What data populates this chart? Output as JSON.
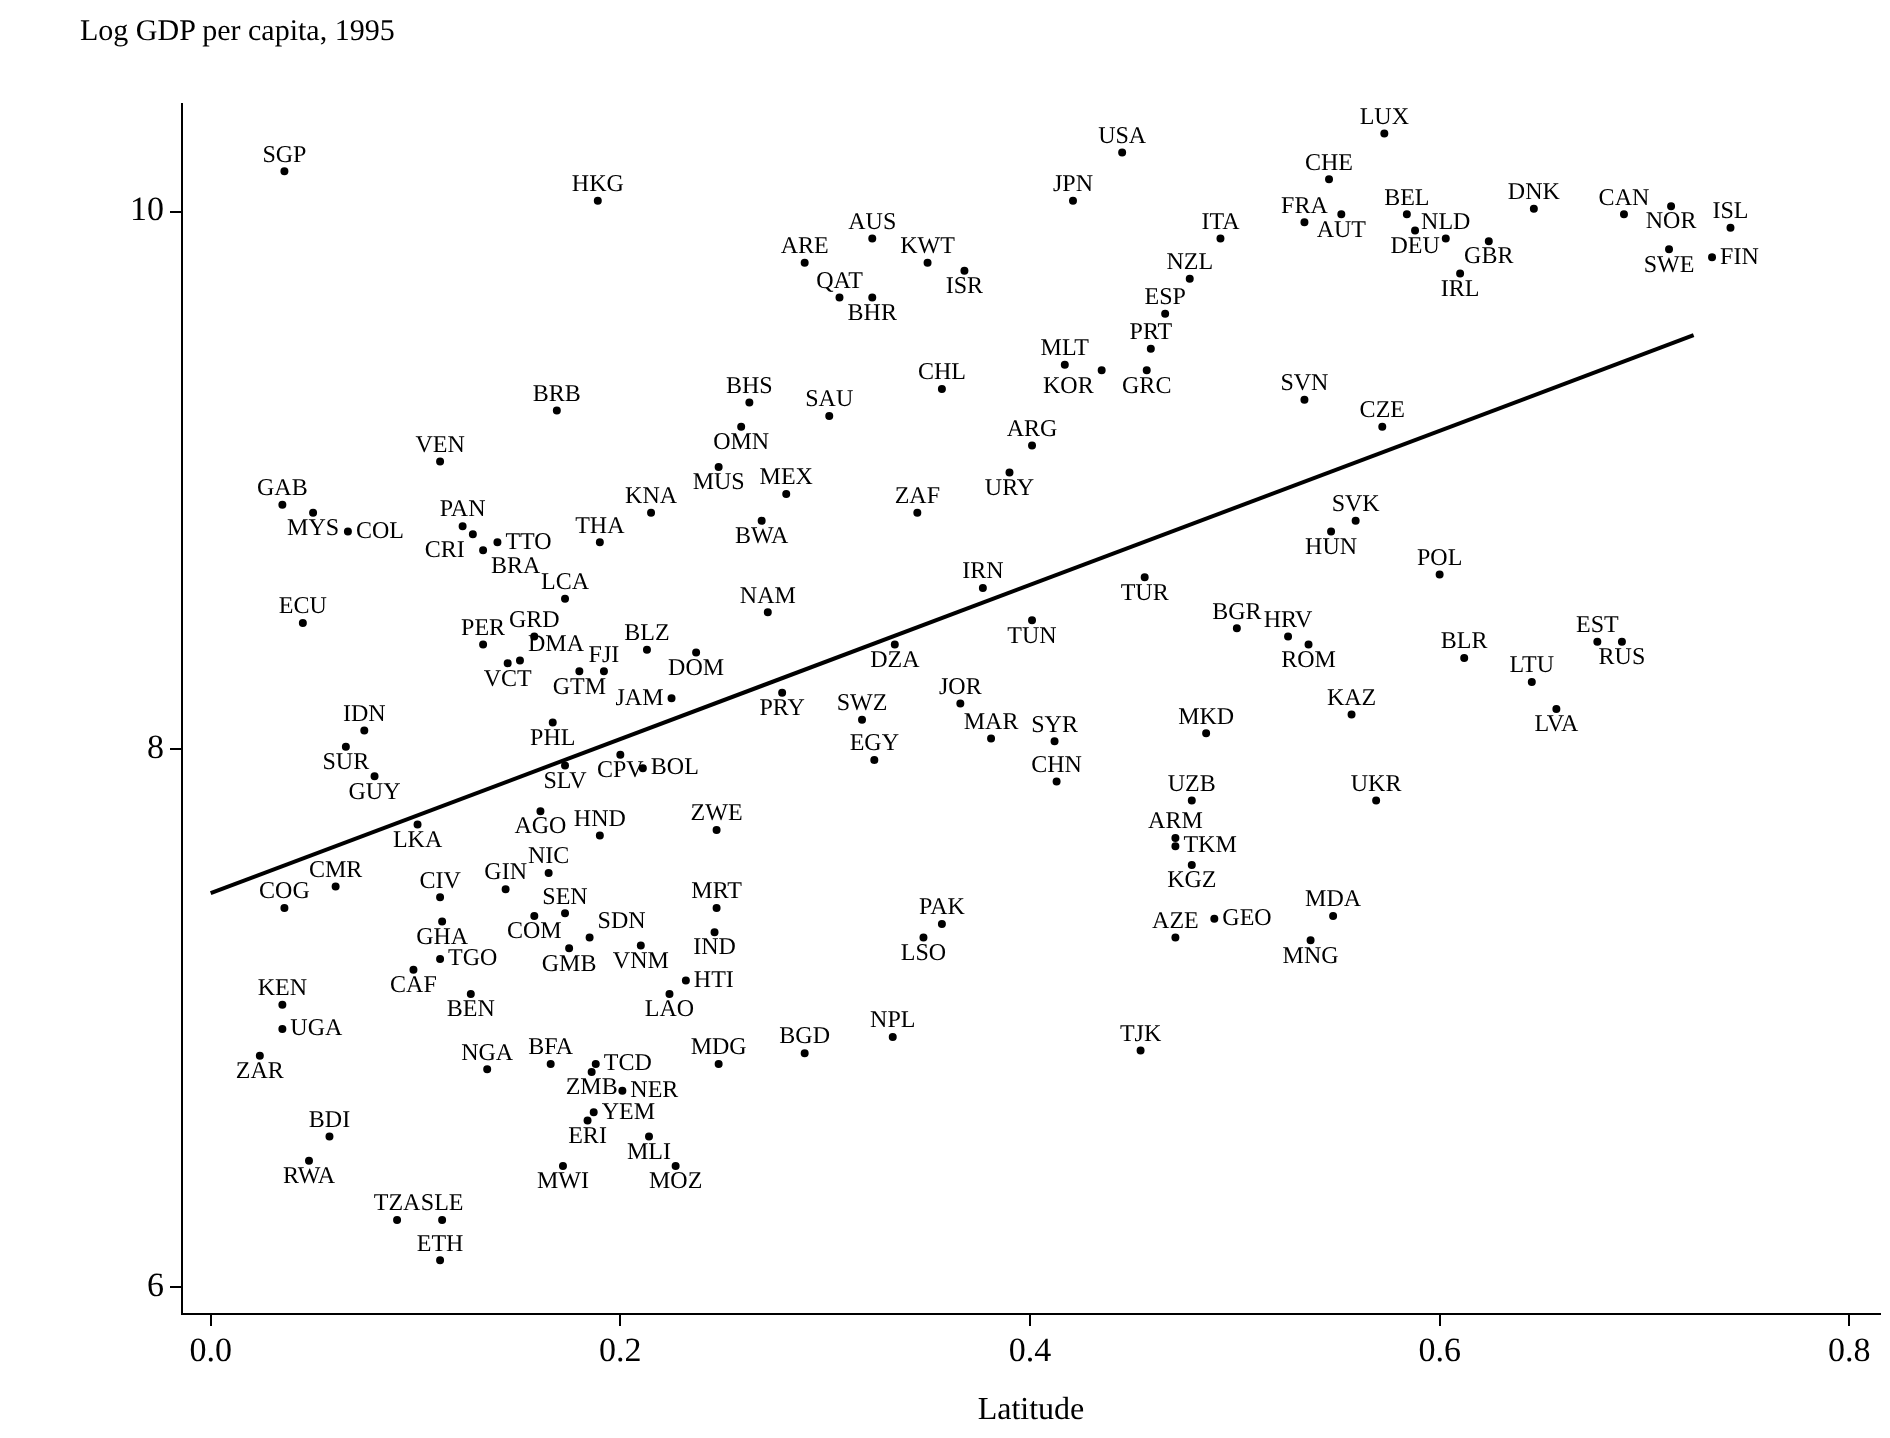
{
  "chart_data": {
    "type": "scatter",
    "ylabel": "Log GDP per capita, 1995",
    "xlabel": "Latitude",
    "xlim": [
      -0.014,
      0.815
    ],
    "ylim": [
      5.9,
      10.4
    ],
    "xticks": [
      {
        "value": 0,
        "label": "0.0"
      },
      0.2,
      0.4,
      0.6,
      0.8
    ],
    "yticks": [
      6,
      8,
      10
    ],
    "legend": false,
    "grid": false,
    "series": [
      {
        "type": "scatter",
        "color": "#000000",
        "marker": "circle",
        "x": [
          0.036,
          0.189,
          0.29,
          0.323,
          0.35,
          0.368,
          0.307,
          0.323,
          0.445,
          0.421,
          0.546,
          0.573,
          0.534,
          0.552,
          0.493,
          0.478,
          0.466,
          0.459,
          0.457,
          0.417,
          0.435,
          0.584,
          0.588,
          0.603,
          0.624,
          0.61,
          0.646,
          0.69,
          0.713,
          0.742,
          0.712,
          0.733,
          0.534,
          0.572,
          0.357,
          0.263,
          0.302,
          0.259,
          0.169,
          0.112,
          0.248,
          0.281,
          0.269,
          0.215,
          0.345,
          0.401,
          0.39,
          0.035,
          0.05,
          0.067,
          0.123,
          0.128,
          0.14,
          0.133,
          0.19,
          0.547,
          0.559,
          0.6,
          0.173,
          0.272,
          0.045,
          0.377,
          0.456,
          0.401,
          0.501,
          0.526,
          0.536,
          0.612,
          0.677,
          0.689,
          0.645,
          0.657,
          0.557,
          0.133,
          0.158,
          0.145,
          0.151,
          0.18,
          0.192,
          0.213,
          0.237,
          0.334,
          0.279,
          0.225,
          0.366,
          0.318,
          0.381,
          0.412,
          0.413,
          0.324,
          0.486,
          0.479,
          0.569,
          0.471,
          0.471,
          0.479,
          0.075,
          0.066,
          0.08,
          0.167,
          0.173,
          0.2,
          0.211,
          0.101,
          0.161,
          0.19,
          0.247,
          0.165,
          0.061,
          0.112,
          0.144,
          0.113,
          0.173,
          0.158,
          0.185,
          0.175,
          0.21,
          0.247,
          0.246,
          0.036,
          0.112,
          0.099,
          0.127,
          0.232,
          0.224,
          0.035,
          0.035,
          0.024,
          0.135,
          0.166,
          0.188,
          0.186,
          0.201,
          0.187,
          0.184,
          0.214,
          0.172,
          0.227,
          0.248,
          0.29,
          0.333,
          0.058,
          0.048,
          0.091,
          0.113,
          0.112,
          0.357,
          0.348,
          0.471,
          0.49,
          0.548,
          0.537,
          0.454
        ],
        "values": [
          10.15,
          10.04,
          9.81,
          9.9,
          9.81,
          9.78,
          9.68,
          9.68,
          10.22,
          10.04,
          10.12,
          10.29,
          9.96,
          9.99,
          9.9,
          9.75,
          9.62,
          9.49,
          9.41,
          9.43,
          9.41,
          9.99,
          9.93,
          9.9,
          9.89,
          9.77,
          10.01,
          9.99,
          10.02,
          9.94,
          9.86,
          9.83,
          9.3,
          9.2,
          9.34,
          9.29,
          9.24,
          9.2,
          9.26,
          9.07,
          9.05,
          8.95,
          8.85,
          8.88,
          8.88,
          9.13,
          9.03,
          8.91,
          8.88,
          8.81,
          8.83,
          8.8,
          8.77,
          8.74,
          8.77,
          8.81,
          8.85,
          8.65,
          8.56,
          8.51,
          8.47,
          8.6,
          8.64,
          8.48,
          8.45,
          8.42,
          8.39,
          8.34,
          8.4,
          8.4,
          8.25,
          8.15,
          8.13,
          8.39,
          8.42,
          8.32,
          8.33,
          8.29,
          8.29,
          8.37,
          8.36,
          8.39,
          8.21,
          8.19,
          8.17,
          8.11,
          8.04,
          8.03,
          7.88,
          7.96,
          8.06,
          7.81,
          7.81,
          7.67,
          7.64,
          7.57,
          8.07,
          8.01,
          7.9,
          8.1,
          7.94,
          7.98,
          7.93,
          7.72,
          7.77,
          7.68,
          7.7,
          7.54,
          7.49,
          7.45,
          7.48,
          7.36,
          7.39,
          7.38,
          7.3,
          7.26,
          7.27,
          7.41,
          7.32,
          7.41,
          7.22,
          7.18,
          7.09,
          7.14,
          7.09,
          7.05,
          6.96,
          6.86,
          6.81,
          6.83,
          6.83,
          6.8,
          6.73,
          6.65,
          6.62,
          6.56,
          6.45,
          6.45,
          6.83,
          6.87,
          6.93,
          6.56,
          6.47,
          6.25,
          6.25,
          6.1,
          7.35,
          7.3,
          7.3,
          7.37,
          7.38,
          7.29,
          6.88
        ],
        "value_labels": [
          "SGP",
          "HKG",
          "ARE",
          "AUS",
          "KWT",
          "ISR",
          "QAT",
          "BHR",
          "USA",
          "JPN",
          "CHE",
          "LUX",
          "FRA",
          "AUT",
          "ITA",
          "NZL",
          "ESP",
          "PRT",
          "GRC",
          "MLT",
          "KOR",
          "BEL",
          "DEU",
          "NLD",
          "GBR",
          "IRL",
          "DNK",
          "CAN",
          "NOR",
          "ISL",
          "SWE",
          "FIN",
          "SVN",
          "CZE",
          "CHL",
          "BHS",
          "SAU",
          "OMN",
          "BRB",
          "VEN",
          "MUS",
          "MEX",
          "BWA",
          "KNA",
          "ZAF",
          "ARG",
          "URY",
          "GAB",
          "MYS",
          "COL",
          "PAN",
          "CRI",
          "TTO",
          "BRA",
          "THA",
          "HUN",
          "SVK",
          "POL",
          "LCA",
          "NAM",
          "ECU",
          "IRN",
          "TUR",
          "TUN",
          "BGR",
          "HRV",
          "ROM",
          "BLR",
          "EST",
          "RUS",
          "LTU",
          "LVA",
          "KAZ",
          "PER",
          "GRD",
          "VCT",
          "DMA",
          "GTM",
          "FJI",
          "BLZ",
          "DOM",
          "DZA",
          "PRY",
          "JAM",
          "JOR",
          "SWZ",
          "MAR",
          "SYR",
          "CHN",
          "EGY",
          "MKD",
          "UZB",
          "UKR",
          "ARM",
          "TKM",
          "KGZ",
          "IDN",
          "SUR",
          "GUY",
          "PHL",
          "SLV",
          "CPV",
          "BOL",
          "LKA",
          "AGO",
          "HND",
          "ZWE",
          "NIC",
          "CMR",
          "CIV",
          "GIN",
          "GHA",
          "SEN",
          "COM",
          "SDN",
          "GMB",
          "VNM",
          "MRT",
          "IND",
          "COG",
          "TGO",
          "CAF",
          "BEN",
          "HTI",
          "LAO",
          "KEN",
          "UGA",
          "ZAR",
          "NGA",
          "BFA",
          "TCD",
          "ZMB",
          "NER",
          "YEM",
          "ERI",
          "MLI",
          "MWI",
          "MOZ",
          "MDG",
          "BGD",
          "NPL",
          "BDI",
          "RWA",
          "TZA",
          "SLE",
          "ETH",
          "PAK",
          "LSO",
          "AZE",
          "GEO",
          "MDA",
          "MNG",
          "TJK"
        ]
      },
      {
        "type": "line",
        "color": "#000000",
        "x": [
          0,
          0.724
        ],
        "values": [
          7.465,
          9.54
        ]
      }
    ]
  }
}
